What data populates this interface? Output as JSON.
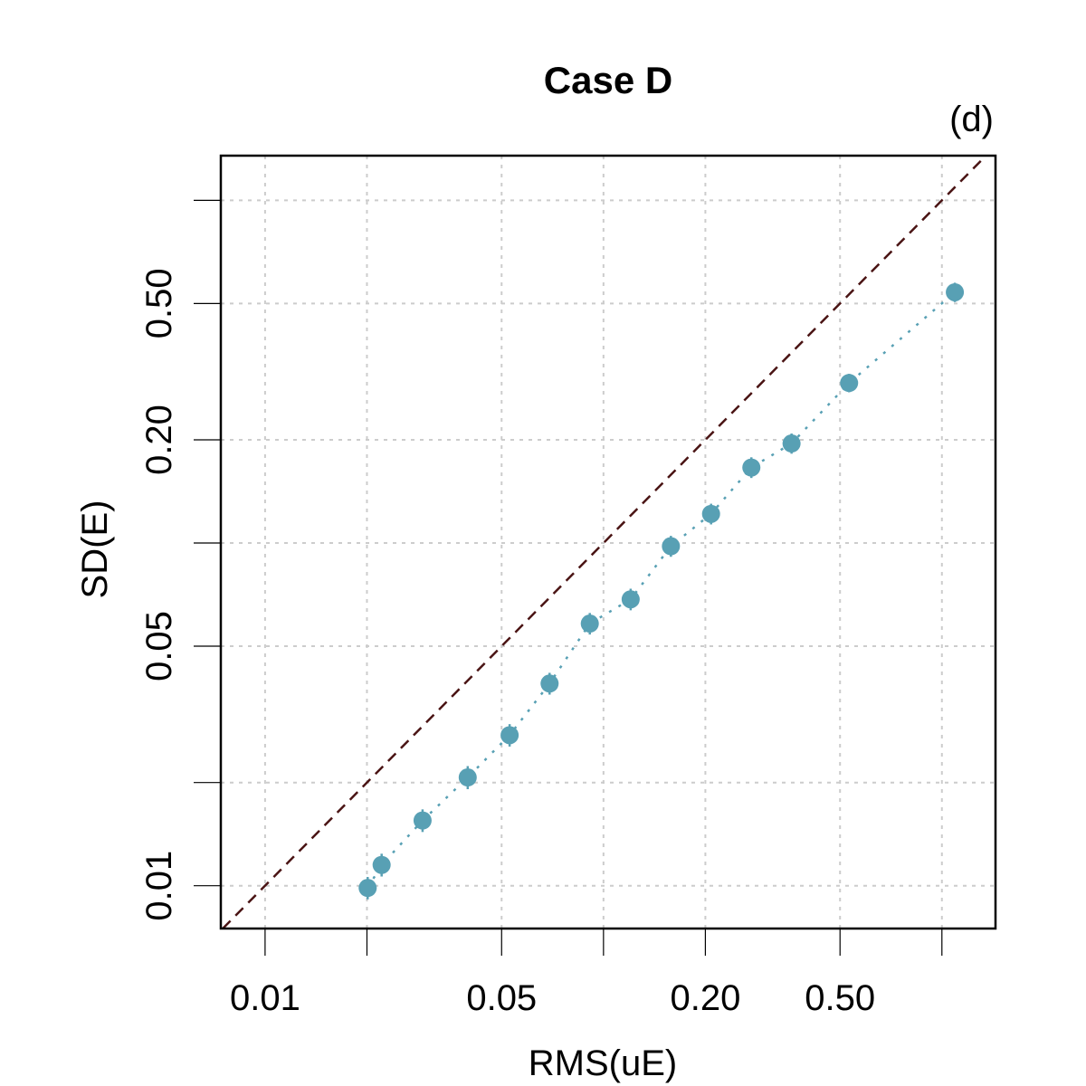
{
  "chart_data": {
    "type": "scatter",
    "title": "Case D",
    "panel_label": "(d)",
    "xlabel": "RMS(uE)",
    "ylabel": "SD(E)",
    "x_scale": "log",
    "y_scale": "log",
    "xlim": [
      0.0074,
      1.44
    ],
    "ylim": [
      0.0075,
      1.35
    ],
    "x_ticks": [
      0.01,
      0.02,
      0.05,
      0.1,
      0.2,
      0.5,
      1.0
    ],
    "y_ticks": [
      0.01,
      0.02,
      0.05,
      0.1,
      0.2,
      0.5,
      1.0
    ],
    "x_tick_labels": [
      {
        "value": 0.01,
        "label": "0.01"
      },
      {
        "value": 0.05,
        "label": "0.05"
      },
      {
        "value": 0.2,
        "label": "0.20"
      },
      {
        "value": 0.5,
        "label": "0.50"
      }
    ],
    "y_tick_labels": [
      {
        "value": 0.01,
        "label": "0.01"
      },
      {
        "value": 0.05,
        "label": "0.05"
      },
      {
        "value": 0.2,
        "label": "0.20"
      },
      {
        "value": 0.5,
        "label": "0.50"
      }
    ],
    "grid": true,
    "reference_line": {
      "type": "identity",
      "style": "dashed",
      "color": "#4a1414"
    },
    "series": [
      {
        "name": "bins",
        "color": "#58a0b4",
        "line_style": "dotted",
        "x": [
          0.0201,
          0.0221,
          0.0292,
          0.0397,
          0.0528,
          0.0693,
          0.0911,
          0.1203,
          0.1582,
          0.2079,
          0.2735,
          0.3595,
          0.5318,
          1.092
        ],
        "y": [
          0.00985,
          0.0115,
          0.0155,
          0.0207,
          0.0275,
          0.0389,
          0.0582,
          0.0685,
          0.0979,
          0.1216,
          0.1661,
          0.1952,
          0.2931,
          0.5391
        ],
        "y_err": [
          0.0005,
          0.0006,
          0.0008,
          0.0011,
          0.0014,
          0.0019,
          0.0028,
          0.0033,
          0.0045,
          0.0055,
          0.0075,
          0.0085,
          0.011,
          0.022
        ]
      }
    ]
  }
}
